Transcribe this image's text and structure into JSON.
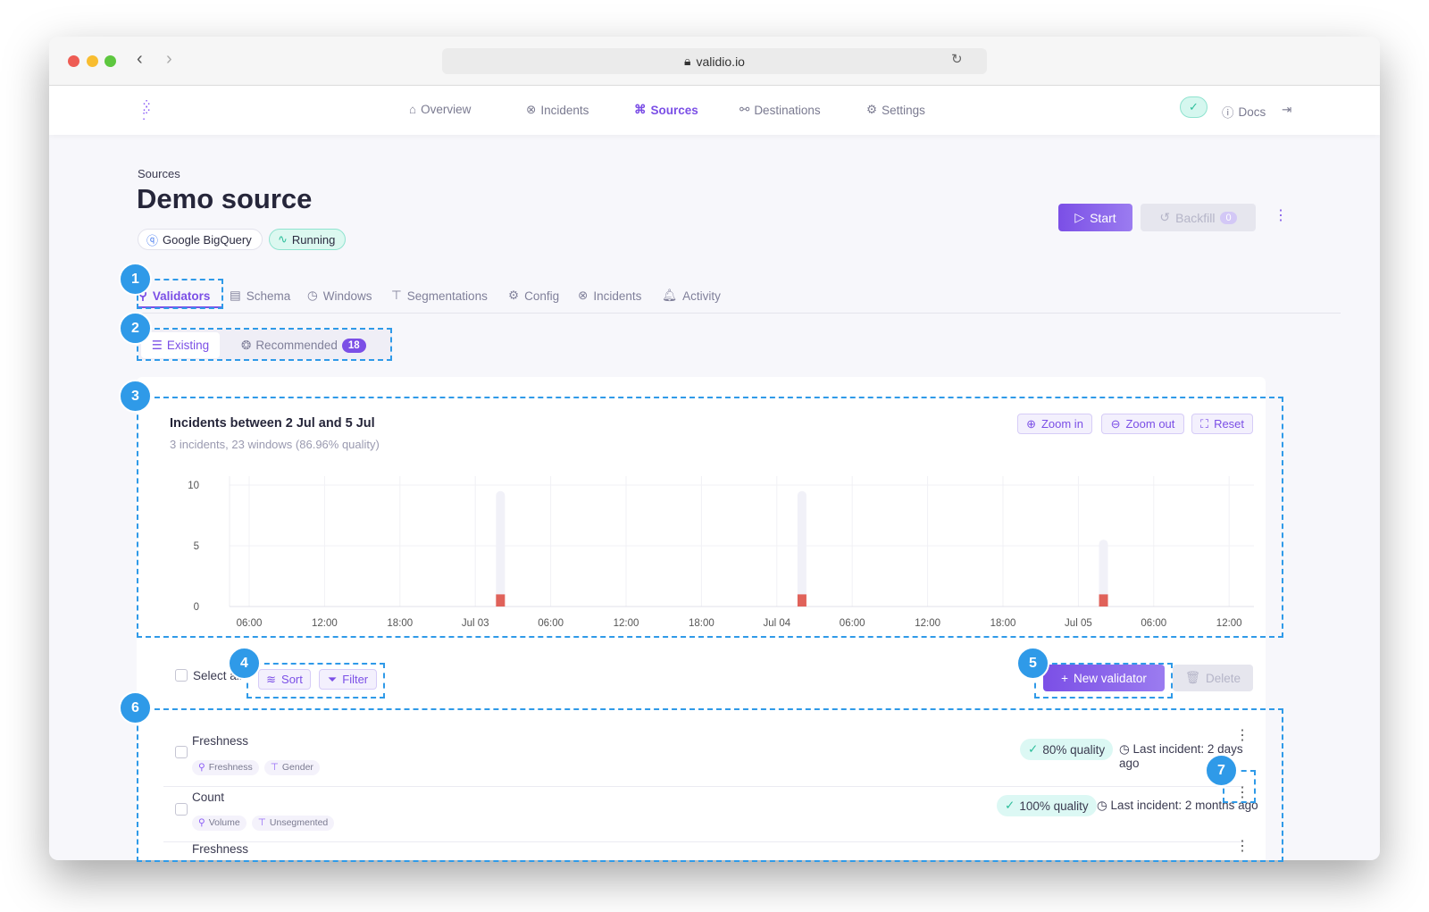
{
  "browser": {
    "url": "validio.io"
  },
  "nav": {
    "items": [
      {
        "label": "Overview",
        "icon": "home-icon"
      },
      {
        "label": "Incidents",
        "icon": "x-circle-icon"
      },
      {
        "label": "Sources",
        "icon": "nodes-icon",
        "active": true
      },
      {
        "label": "Destinations",
        "icon": "share-icon"
      },
      {
        "label": "Settings",
        "icon": "gear-icon"
      }
    ],
    "docs": "Docs"
  },
  "page": {
    "breadcrumb": "Sources",
    "title": "Demo source",
    "source_type": "Google BigQuery",
    "status": "Running",
    "start": "Start",
    "backfill": "Backfill",
    "backfill_count": "0"
  },
  "tabs": [
    {
      "label": "Validators",
      "active": true
    },
    {
      "label": "Schema"
    },
    {
      "label": "Windows"
    },
    {
      "label": "Segmentations"
    },
    {
      "label": "Config"
    },
    {
      "label": "Incidents"
    },
    {
      "label": "Activity"
    }
  ],
  "subtabs": {
    "existing": "Existing",
    "recommended": "Recommended",
    "recommended_count": "18"
  },
  "chart": {
    "title": "Incidents between 2 Jul and 5 Jul",
    "subtitle": "3 incidents, 23 windows (86.96% quality)",
    "zoom_in": "Zoom in",
    "zoom_out": "Zoom out",
    "reset": "Reset"
  },
  "chart_data": {
    "type": "bar",
    "title": "Incidents between 2 Jul and 5 Jul",
    "xlabel": "",
    "ylabel": "",
    "ylim": [
      0,
      10
    ],
    "yticks": [
      "0",
      "5",
      "10"
    ],
    "xticks": [
      "06:00",
      "12:00",
      "18:00",
      "Jul 03",
      "06:00",
      "12:00",
      "18:00",
      "Jul 04",
      "06:00",
      "12:00",
      "18:00",
      "Jul 05",
      "06:00",
      "12:00"
    ],
    "grid": true,
    "x": [
      "Jul 03 02:00",
      "Jul 04 02:00",
      "Jul 05 02:00"
    ],
    "series": [
      {
        "values": [
          9.5,
          9.5,
          5.5
        ],
        "color": "#f1f1f8"
      },
      {
        "values": [
          1,
          1,
          1
        ],
        "color": "#e0625a"
      }
    ]
  },
  "toolbar": {
    "select_all": "Select all",
    "sort": "Sort",
    "filter": "Filter",
    "new_validator": "New validator",
    "delete": "Delete"
  },
  "validators": [
    {
      "name": "Freshness",
      "tags": [
        "Freshness",
        "Gender"
      ],
      "quality": "80% quality",
      "last": "Last incident: 2 days ago"
    },
    {
      "name": "Count",
      "tags": [
        "Volume",
        "Unsegmented"
      ],
      "quality": "100% quality",
      "last": "Last incident: 2 months ago"
    },
    {
      "name": "Freshness",
      "tags": [],
      "quality": "",
      "last": ""
    }
  ],
  "annotations": [
    "1",
    "2",
    "3",
    "4",
    "5",
    "6",
    "7"
  ],
  "colors": {
    "accent": "#7b4fe6",
    "annotation": "#2f9ae8",
    "incident": "#e0625a",
    "quality_bg": "#dcf8f4"
  }
}
